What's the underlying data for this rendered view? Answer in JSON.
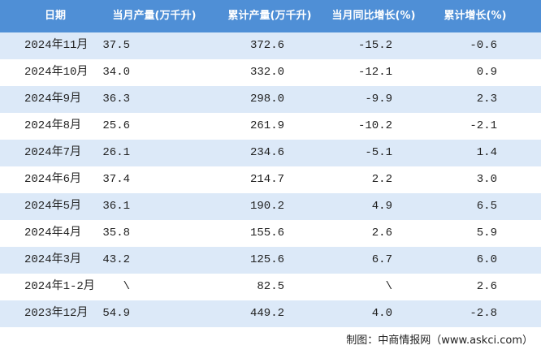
{
  "table": {
    "columns": [
      "日期",
      "当月产量(万千升)",
      "累计产量(万千升)",
      "当月同比增长(%)",
      "累计增长(%)"
    ],
    "rows": [
      [
        "2024年11月",
        "37.5",
        "372.6",
        "-15.2",
        "-0.6"
      ],
      [
        "2024年10月",
        "34.0",
        "332.0",
        "-12.1",
        "0.9"
      ],
      [
        "2024年9月",
        "36.3",
        "298.0",
        "-9.9",
        "2.3"
      ],
      [
        "2024年8月",
        "25.6",
        "261.9",
        "-10.2",
        "-2.1"
      ],
      [
        "2024年7月",
        "26.1",
        "234.6",
        "-5.1",
        "1.4"
      ],
      [
        "2024年6月",
        "37.4",
        "214.7",
        "2.2",
        "3.0"
      ],
      [
        "2024年5月",
        "36.1",
        "190.2",
        "4.9",
        "6.5"
      ],
      [
        "2024年4月",
        "35.8",
        "155.6",
        "2.6",
        "5.9"
      ],
      [
        "2024年3月",
        "43.2",
        "125.6",
        "6.7",
        "6.0"
      ],
      [
        "2024年1-2月",
        "\\",
        "82.5",
        "\\",
        "2.6"
      ],
      [
        "2023年12月",
        "54.9",
        "449.2",
        "4.0",
        "-2.8"
      ]
    ]
  },
  "footer": {
    "source": "制图：中商情报网（www.askci.com）"
  }
}
